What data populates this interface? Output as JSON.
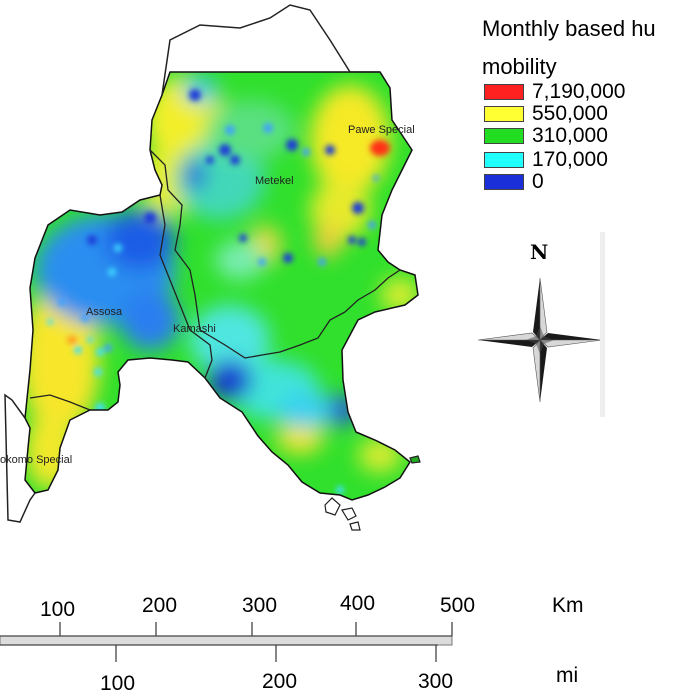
{
  "legend": {
    "title_line1": "Monthly based hu",
    "title_line2": "mobility",
    "classes": [
      {
        "label": "7,190,000",
        "color": "#ff2020"
      },
      {
        "label": "550,000",
        "color": "#ffff33"
      },
      {
        "label": "310,000",
        "color": "#22dd22"
      },
      {
        "label": "170,000",
        "color": "#22ffff"
      },
      {
        "label": "0",
        "color": "#1a2fd8"
      }
    ]
  },
  "places": {
    "pawe": "Pawe Special",
    "metekel": "Metekel",
    "assosa": "Assosa",
    "kamashi": "Kamashi",
    "mao_komo": "okomo Special"
  },
  "north_arrow": {
    "label": "N"
  },
  "scale_bar": {
    "km_labels": [
      "100",
      "200",
      "300",
      "400",
      "500"
    ],
    "km_unit": "Km",
    "mi_labels": [
      "100",
      "200",
      "300"
    ],
    "mi_unit": "mi"
  }
}
